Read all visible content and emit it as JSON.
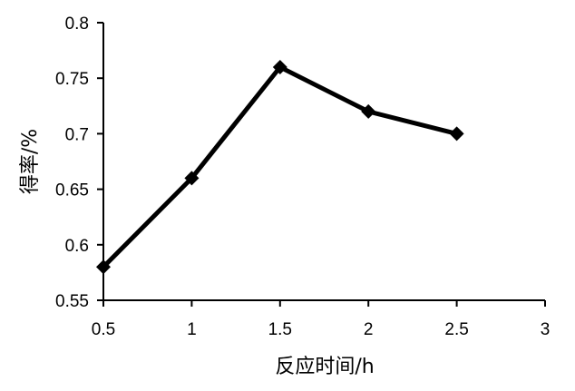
{
  "chart_data": {
    "type": "line",
    "title": "",
    "xlabel": "反应时间/h",
    "ylabel": "得率/%",
    "xlim": [
      0.5,
      3
    ],
    "ylim": [
      0.55,
      0.8
    ],
    "xticks": [
      0.5,
      1,
      1.5,
      2,
      2.5,
      3
    ],
    "yticks": [
      0.55,
      0.6,
      0.65,
      0.7,
      0.75,
      0.8
    ],
    "xtick_labels": [
      "0.5",
      "1",
      "1.5",
      "2",
      "2.5",
      "3"
    ],
    "ytick_labels": [
      "0.55",
      "0.6",
      "0.65",
      "0.7",
      "0.75",
      "0.8"
    ],
    "grid": false,
    "legend": "none",
    "marker": "diamond",
    "line_color": "#000000",
    "series": [
      {
        "x": [
          0.5,
          1,
          1.5,
          2,
          2.5
        ],
        "values": [
          0.58,
          0.66,
          0.76,
          0.72,
          0.7
        ]
      }
    ]
  }
}
